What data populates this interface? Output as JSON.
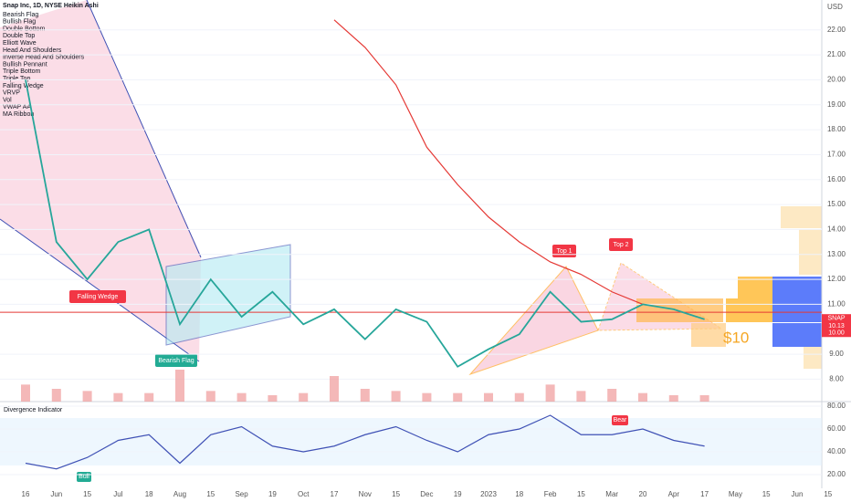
{
  "chart_data": {
    "type": "line",
    "title": "Snap Inc, 1D, NYSE Heikin Ashi",
    "legend_items": [
      "Bearish Flag",
      "Bullish Flag",
      "Double Bottom",
      "Double Top",
      "Elliott Wave",
      "Head And Shoulders",
      "Inverse Head And Shoulders",
      "Bullish Pennant",
      "Triple Bottom",
      "Triple Top",
      "Falling Wedge",
      "VRVP",
      "Vol",
      "VWAP AA",
      "MA Ribbon"
    ],
    "currency": "USD",
    "categories": [
      "16",
      "Jun",
      "15",
      "Jul",
      "18",
      "Aug",
      "15",
      "Sep",
      "19",
      "Oct",
      "17",
      "Nov",
      "15",
      "Dec",
      "19",
      "2023",
      "18",
      "Feb",
      "15",
      "Mar",
      "20",
      "Apr",
      "17",
      "May",
      "15",
      "Jun",
      "15"
    ],
    "close": [
      20,
      13.5,
      12.0,
      13.5,
      14.0,
      10.2,
      12.0,
      10.5,
      11.5,
      10.2,
      10.8,
      9.6,
      10.8,
      10.3,
      8.5,
      9.2,
      9.8,
      11.5,
      10.3,
      10.4,
      11.0,
      10.8,
      10.4,
      null,
      null,
      null,
      null
    ],
    "close_color": "#26a69a",
    "ma": [
      null,
      null,
      null,
      null,
      null,
      null,
      null,
      null,
      null,
      null,
      22.4,
      21.3,
      19.8,
      17.3,
      15.8,
      14.5,
      13.5,
      12.7,
      12.2,
      11.5,
      11.0,
      null,
      null,
      null,
      null,
      null,
      null
    ],
    "ma_color": "#e53935",
    "volume": [
      8,
      6,
      5,
      4,
      4,
      15,
      5,
      4,
      3,
      4,
      12,
      6,
      5,
      4,
      4,
      4,
      4,
      8,
      5,
      6,
      4,
      3,
      3,
      null,
      null,
      null,
      null
    ],
    "volume_color": "#ef9a9a",
    "hline": 10.68,
    "ylim": [
      7.1,
      23.2
    ],
    "yticks": [
      {
        "value": 8,
        "label": "8.00"
      },
      {
        "value": 9,
        "label": "9.00"
      },
      {
        "value": 11,
        "label": "11.00"
      },
      {
        "value": 12,
        "label": "12.00"
      },
      {
        "value": 13,
        "label": "13.00"
      },
      {
        "value": 14,
        "label": "14.00"
      },
      {
        "value": 15,
        "label": "15.00"
      },
      {
        "value": 16,
        "label": "16.00"
      },
      {
        "value": 17,
        "label": "17.00"
      },
      {
        "value": 18,
        "label": "18.00"
      },
      {
        "value": 19,
        "label": "19.00"
      },
      {
        "value": 20,
        "label": "20.00"
      },
      {
        "value": 21,
        "label": "21.00"
      },
      {
        "value": 22,
        "label": "22.00"
      }
    ],
    "price_labels": [
      {
        "value": 10.13,
        "label": "10.13"
      },
      {
        "value": 10.0,
        "label": "10.00"
      }
    ],
    "ticker": "SNAP",
    "target_label": "$10",
    "patterns": [
      "Falling Wedge",
      "Bearish Flag",
      "Top 1",
      "Top 2"
    ],
    "indicator": {
      "title": "Divergence Indicator",
      "values": [
        30,
        25,
        35,
        50,
        55,
        30,
        55,
        62,
        45,
        40,
        45,
        55,
        62,
        50,
        40,
        55,
        60,
        72,
        55,
        55,
        60,
        50,
        45,
        null,
        null,
        null,
        null
      ],
      "color": "#3f51b5",
      "ylim": [
        8,
        84
      ],
      "yticks": [
        {
          "value": 20,
          "label": "20.00"
        },
        {
          "value": 40,
          "label": "40.00"
        },
        {
          "value": 60,
          "label": "60.00"
        },
        {
          "value": 80,
          "label": "80.00"
        }
      ],
      "signals": [
        "Bull",
        "Bear"
      ]
    }
  }
}
